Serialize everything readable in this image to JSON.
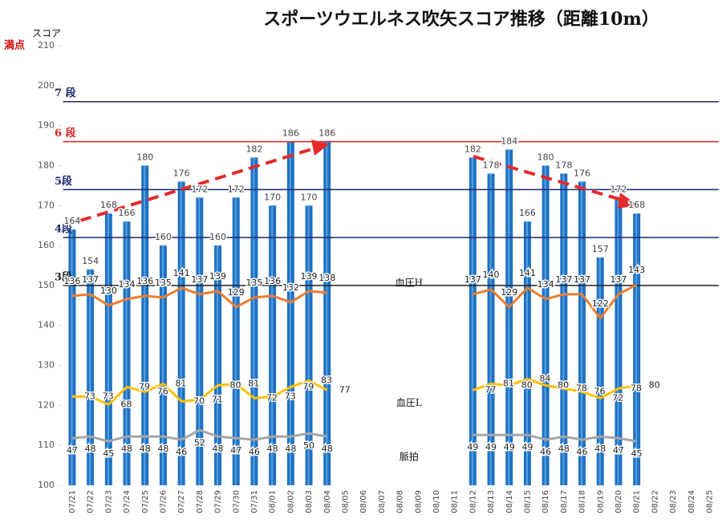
{
  "chart_data": {
    "type": "bar",
    "title": "スポーツウエルネス吹矢スコア推移（距離10m）",
    "full_mark_label": "満点",
    "categories": [
      "07/21",
      "07/22",
      "07/23",
      "07/24",
      "07/25",
      "07/26",
      "07/27",
      "07/28",
      "07/29",
      "07/30",
      "07/31",
      "08/01",
      "08/02",
      "08/03",
      "08/04",
      "08/05",
      "08/06",
      "08/07",
      "08/08",
      "08/09",
      "08/10",
      "08/11",
      "08/12",
      "08/13",
      "08/14",
      "08/15",
      "08/16",
      "08/17",
      "08/18",
      "08/19",
      "08/20",
      "08/21",
      "08/22",
      "08/23",
      "08/24",
      "08/25"
    ],
    "series": [
      {
        "name": "スコア",
        "type": "bar",
        "color": "#1f72c4",
        "values": [
          164,
          154,
          168,
          166,
          180,
          160,
          176,
          172,
          160,
          172,
          182,
          170,
          186,
          170,
          186,
          null,
          null,
          null,
          null,
          null,
          null,
          null,
          182,
          178,
          184,
          166,
          180,
          178,
          176,
          157,
          172,
          168,
          null,
          null,
          null,
          null
        ]
      },
      {
        "name": "血圧H",
        "type": "line",
        "axis": "y2",
        "color": "#ed7d31",
        "values": [
          136,
          137,
          130,
          134,
          136,
          135,
          141,
          137,
          139,
          129,
          135,
          136,
          132,
          139,
          138,
          null,
          null,
          null,
          null,
          null,
          null,
          null,
          137,
          140,
          129,
          141,
          134,
          137,
          137,
          122,
          137,
          143,
          null,
          null,
          null,
          null
        ]
      },
      {
        "name": "血圧L",
        "type": "line",
        "axis": "y2",
        "color": "#ffc000",
        "values": [
          73,
          73,
          68,
          79,
          76,
          81,
          70,
          71,
          80,
          81,
          72,
          73,
          79,
          83,
          77,
          null,
          null,
          null,
          null,
          null,
          null,
          null,
          77,
          81,
          80,
          84,
          80,
          78,
          76,
          72,
          78,
          80,
          null,
          null,
          null,
          null
        ]
      },
      {
        "name": "脈拍",
        "type": "line",
        "axis": "y2",
        "color": "#a5a5a5",
        "values": [
          47,
          48,
          45,
          48,
          48,
          48,
          46,
          52,
          48,
          47,
          46,
          48,
          48,
          50,
          48,
          null,
          null,
          null,
          null,
          null,
          null,
          null,
          49,
          49,
          49,
          49,
          46,
          48,
          46,
          48,
          47,
          45,
          null,
          null,
          null,
          null
        ]
      }
    ],
    "ylim": [
      100,
      210
    ],
    "yticks": [
      100,
      110,
      120,
      130,
      140,
      150,
      160,
      170,
      180,
      190,
      200,
      210
    ],
    "y2lim": [
      17.5,
      292.5
    ],
    "reference_lines": [
      {
        "label": "7 段",
        "value": 196,
        "color": "#1a2a6c"
      },
      {
        "label": "6 段",
        "value": 186,
        "color": "#e02020"
      },
      {
        "label": "5段",
        "value": 174,
        "color": "#1a2a6c"
      },
      {
        "label": "4段",
        "value": 162,
        "color": "#1a2a6c"
      },
      {
        "label": "3段",
        "value": 150,
        "color": "#222222"
      }
    ]
  }
}
